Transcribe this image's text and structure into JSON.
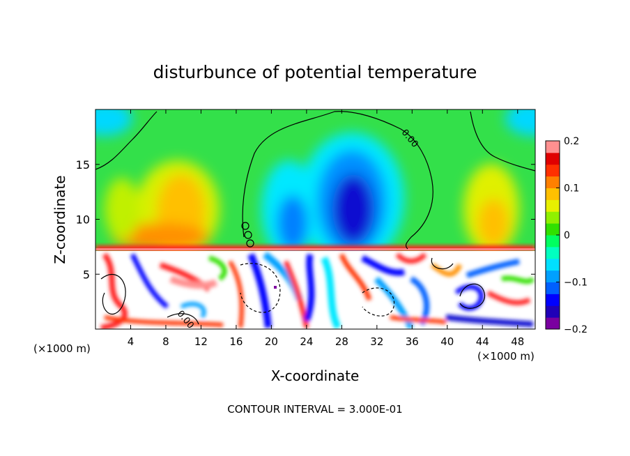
{
  "chart_data": {
    "type": "heatmap",
    "title": "disturbunce of potential temperature",
    "xlabel": "X-coordinate",
    "ylabel": "Z-coordinate",
    "x_unit": "(×1000 m)",
    "x_unit_right": "(×1000 m)",
    "footer": "CONTOUR INTERVAL = 3.000E-01",
    "xlim": [
      0,
      50
    ],
    "ylim": [
      0,
      20
    ],
    "x_ticks": [
      4,
      8,
      12,
      16,
      20,
      24,
      28,
      32,
      36,
      40,
      44,
      48
    ],
    "y_ticks": [
      5,
      10,
      15
    ],
    "colorbar": {
      "range": [
        -0.2,
        0.2
      ],
      "ticks": [
        {
          "value": 0.2,
          "label": "0.2"
        },
        {
          "value": 0.1,
          "label": "0.1"
        },
        {
          "value": 0.0,
          "label": "0"
        },
        {
          "value": -0.1,
          "label": "−0.1"
        },
        {
          "value": -0.2,
          "label": "−0.2"
        }
      ],
      "colors": [
        "#7a00a0",
        "#2000b8",
        "#0000ff",
        "#0060ff",
        "#00a0ff",
        "#00e0ff",
        "#00ffc0",
        "#00ff60",
        "#30e000",
        "#90f000",
        "#e8f000",
        "#ffc000",
        "#ff8000",
        "#ff3000",
        "#e00000",
        "#ff9090"
      ]
    },
    "contour_labels": [
      {
        "x": 35.5,
        "y": 17.2,
        "text": "0.00"
      },
      {
        "x": 10.0,
        "y": 0.7,
        "text": "0.00"
      }
    ],
    "features": [
      {
        "name": "warm-anomaly-left",
        "x": 9.5,
        "z": 10.5,
        "value": 0.1
      },
      {
        "name": "cold-anomaly-right-core",
        "x": 30.0,
        "z": 10.0,
        "value": -0.18
      },
      {
        "name": "cold-anomaly-left",
        "x": 22.0,
        "z": 9.5,
        "value": -0.09
      },
      {
        "name": "warm-anomaly-right",
        "x": 45.0,
        "z": 11.0,
        "value": 0.08
      },
      {
        "name": "cold-corner-top-left",
        "x": 0.5,
        "z": 19.5,
        "value": -0.08
      },
      {
        "name": "cold-corner-top-right",
        "x": 49.5,
        "z": 19.5,
        "value": -0.08
      },
      {
        "name": "warm-inversion-layer",
        "z": 7.3,
        "value": 0.2
      },
      {
        "name": "turbulent-lower-layer",
        "z_range": [
          0,
          7.3
        ],
        "value_range": [
          -0.2,
          0.2
        ]
      }
    ]
  }
}
